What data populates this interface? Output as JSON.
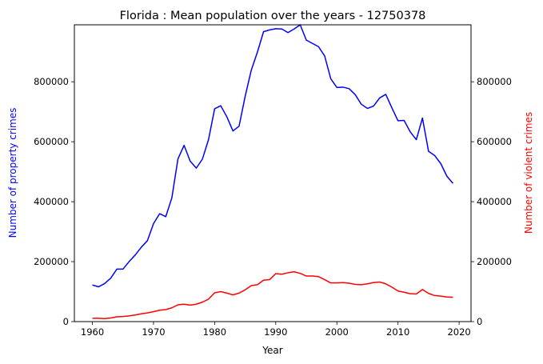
{
  "chart_data": {
    "type": "line",
    "title": "Florida : Mean population over the years - 12750378",
    "xlabel": "Year",
    "ylabel_left": "Number of property crimes",
    "ylabel_right": "Number of violent crimes",
    "xlim": [
      1957.05,
      2021.95
    ],
    "ylim": [
      0,
      990000
    ],
    "x_ticks": [
      1960,
      1970,
      1980,
      1990,
      2000,
      2010,
      2020
    ],
    "y_ticks": [
      0,
      200000,
      400000,
      600000,
      800000
    ],
    "x": [
      1960,
      1961,
      1962,
      1963,
      1964,
      1965,
      1966,
      1967,
      1968,
      1969,
      1970,
      1971,
      1972,
      1973,
      1974,
      1975,
      1976,
      1977,
      1978,
      1979,
      1980,
      1981,
      1982,
      1983,
      1984,
      1985,
      1986,
      1987,
      1988,
      1989,
      1990,
      1991,
      1992,
      1993,
      1994,
      1995,
      1996,
      1997,
      1998,
      1999,
      2000,
      2001,
      2002,
      2003,
      2004,
      2005,
      2006,
      2007,
      2008,
      2009,
      2010,
      2011,
      2012,
      2013,
      2014,
      2015,
      2016,
      2017,
      2018,
      2019
    ],
    "series": [
      {
        "name": "Number of property crimes",
        "axis": "left",
        "color": "#0000ff",
        "values": [
          122000,
          116000,
          127000,
          145000,
          175000,
          175000,
          200000,
          222000,
          248000,
          270000,
          327000,
          360000,
          350000,
          413000,
          543000,
          588000,
          535000,
          512000,
          542000,
          607000,
          710000,
          720000,
          683000,
          636000,
          652000,
          752000,
          839000,
          899000,
          967000,
          973000,
          977000,
          976000,
          964000,
          976000,
          990000,
          939000,
          928000,
          917000,
          886000,
          810000,
          781000,
          782000,
          777000,
          757000,
          725000,
          711000,
          719000,
          746000,
          758000,
          713000,
          670000,
          671000,
          633000,
          607000,
          679000,
          568000,
          554000,
          527000,
          485000,
          461000
        ]
      },
      {
        "name": "Number of violent crimes",
        "axis": "right",
        "color": "#ff0000",
        "values": [
          11000,
          11000,
          10000,
          12000,
          16000,
          17000,
          19000,
          22000,
          26000,
          29000,
          33000,
          38000,
          40000,
          46000,
          56000,
          58000,
          55000,
          58000,
          65000,
          75000,
          96000,
          100000,
          95000,
          89000,
          95000,
          106000,
          120000,
          123000,
          138000,
          140000,
          160000,
          158000,
          163000,
          166000,
          161000,
          152000,
          152000,
          150000,
          140000,
          129000,
          129000,
          130000,
          128000,
          124000,
          123000,
          126000,
          130000,
          132000,
          126000,
          115000,
          102000,
          98000,
          93000,
          92000,
          107000,
          94000,
          87000,
          85000,
          82000,
          81000
        ]
      }
    ]
  }
}
